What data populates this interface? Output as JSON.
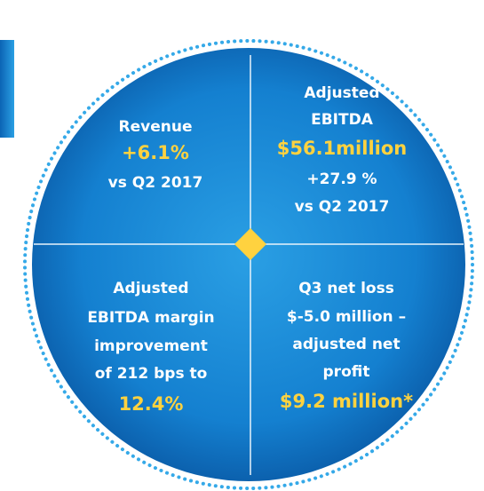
{
  "quadrants": [
    {
      "lines": [
        {
          "text": "Revenue",
          "color": "#ffffff"
        },
        {
          "text": "+6.1%",
          "color": "#ffd23f"
        },
        {
          "text": "vs Q2 2017",
          "color": "#ffffff"
        }
      ]
    },
    {
      "lines": [
        {
          "text": "Adjusted",
          "color": "#ffffff"
        },
        {
          "text": "EBITDA",
          "color": "#ffffff"
        },
        {
          "text": "$56.1million",
          "color": "#ffd23f"
        },
        {
          "text": "+27.9 %",
          "color": "#ffffff"
        },
        {
          "text": "vs Q2 2017",
          "color": "#ffffff"
        }
      ]
    },
    {
      "lines": [
        {
          "text": "Adjusted",
          "color": "#ffffff"
        },
        {
          "text": "EBITDA margin",
          "color": "#ffffff"
        },
        {
          "text": "improvement",
          "color": "#ffffff"
        },
        {
          "text": "of 212 bps to",
          "color": "#ffffff"
        },
        {
          "text": "12.4%",
          "color": "#ffd23f"
        }
      ]
    },
    {
      "lines": [
        {
          "text": "Q3 net loss",
          "color": "#ffffff"
        },
        {
          "text": "$-5.0 million –",
          "color": "#ffffff"
        },
        {
          "text": "adjusted net",
          "color": "#ffffff"
        },
        {
          "text": "profit",
          "color": "#ffffff"
        },
        {
          "text": "$9.2 million*",
          "color": "#ffd23f"
        }
      ]
    }
  ]
}
